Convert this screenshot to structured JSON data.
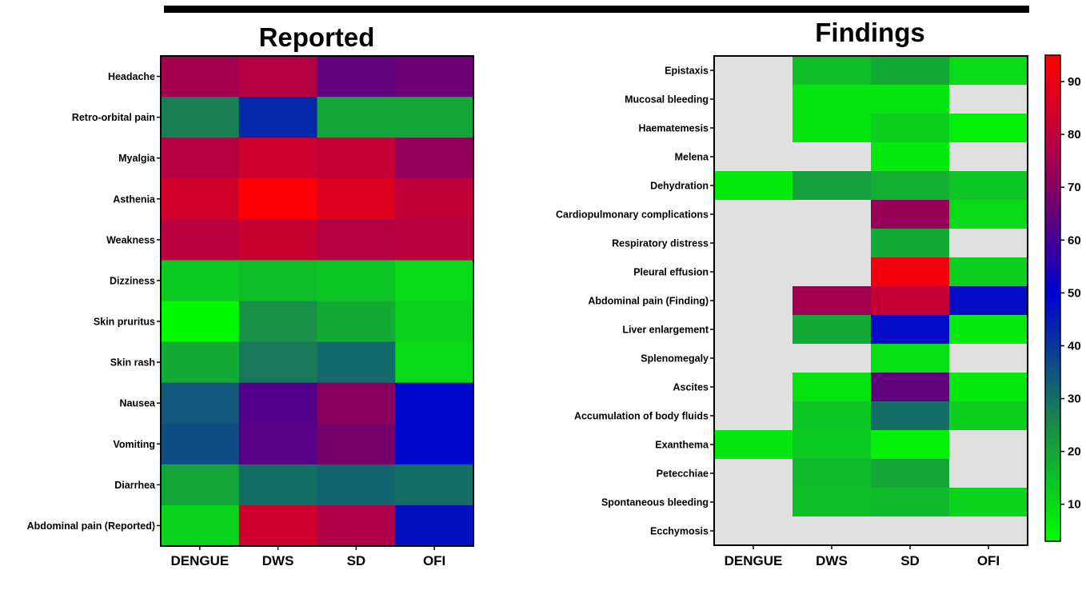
{
  "chart_data": [
    {
      "type": "heatmap",
      "title": "Reported",
      "columns": [
        "DENGUE",
        "DWS",
        "SD",
        "OFI"
      ],
      "rows": [
        "Headache",
        "Retro-orbital pain",
        "Myalgia",
        "Asthenia",
        "Weakness",
        "Dizziness",
        "Skin pruritus",
        "Skin rash",
        "Nausea",
        "Vomiting",
        "Diarrhea",
        "Abdominal pain (Reported)"
      ],
      "values": [
        [
          75,
          78,
          64,
          66
        ],
        [
          27,
          43,
          20,
          20
        ],
        [
          78,
          83,
          81,
          72
        ],
        [
          84,
          94,
          87,
          80
        ],
        [
          79,
          82,
          78,
          79
        ],
        [
          13,
          15,
          14,
          10
        ],
        [
          4,
          24,
          19,
          11
        ],
        [
          19,
          28,
          31,
          10
        ],
        [
          34,
          62,
          71,
          49
        ],
        [
          36,
          63,
          68,
          49
        ],
        [
          20,
          30,
          32,
          30
        ],
        [
          11,
          83,
          77,
          47
        ]
      ]
    },
    {
      "type": "heatmap",
      "title": "Findings",
      "columns": [
        "DENGUE",
        "DWS",
        "SD",
        "OFI"
      ],
      "rows": [
        "Epistaxis",
        "Mucosal bleeding",
        "Haematemesis",
        "Melena",
        "Dehydration",
        "Cardiopulmonary complications",
        "Respiratory distress",
        "Pleural effusion",
        "Abdominal pain (Finding)",
        "Liver enlargement",
        "Splenomegaly",
        "Ascites",
        "Accumulation of body fluids",
        "Exanthema",
        "Petecchiae",
        "Spontaneous bleeding",
        "Ecchymosis"
      ],
      "values": [
        [
          null,
          15,
          19,
          10
        ],
        [
          null,
          8,
          8,
          null
        ],
        [
          null,
          8,
          12,
          6
        ],
        [
          null,
          null,
          7,
          null
        ],
        [
          7,
          21,
          18,
          14
        ],
        [
          null,
          null,
          73,
          10
        ],
        [
          null,
          null,
          19,
          null
        ],
        [
          null,
          null,
          92,
          12
        ],
        [
          null,
          75,
          81,
          48
        ],
        [
          null,
          19,
          48,
          7
        ],
        [
          null,
          null,
          9,
          null
        ],
        [
          null,
          8,
          64,
          7
        ],
        [
          null,
          14,
          30,
          12
        ],
        [
          8,
          13,
          6,
          null
        ],
        [
          null,
          16,
          20,
          null
        ],
        [
          null,
          15,
          16,
          11
        ],
        [
          null,
          null,
          null,
          null
        ]
      ]
    }
  ],
  "colorbar": {
    "ticks": [
      "10",
      "20",
      "30",
      "40",
      "50",
      "60",
      "70",
      "80",
      "90"
    ],
    "min": 3,
    "max": 95,
    "stops": [
      {
        "v": 3,
        "color": "#00ff00"
      },
      {
        "v": 25,
        "color": "#1a8a4a"
      },
      {
        "v": 50,
        "color": "#0000d0"
      },
      {
        "v": 65,
        "color": "#660077"
      },
      {
        "v": 80,
        "color": "#c0003a"
      },
      {
        "v": 95,
        "color": "#ff0000"
      }
    ],
    "missing_color": "#e0e0e0"
  }
}
